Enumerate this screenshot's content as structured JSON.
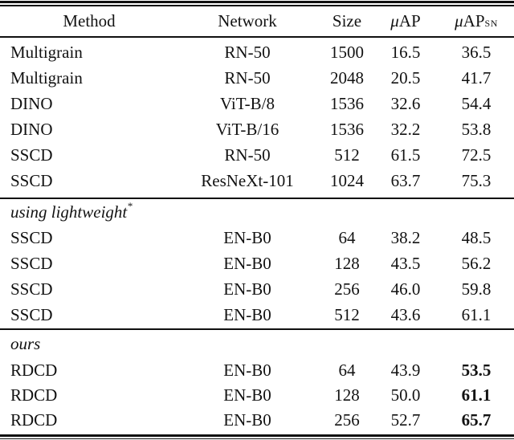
{
  "table": {
    "headers": [
      {
        "label": "Method"
      },
      {
        "label": "Network"
      },
      {
        "label": "Size"
      },
      {
        "label": "μAP",
        "mu": "μ",
        "rest": "AP"
      },
      {
        "label": "μAPSN",
        "mu": "μ",
        "rest": "AP",
        "sub": "SN"
      }
    ],
    "sections": [
      {
        "rows": [
          {
            "method": "Multigrain",
            "network": "RN-50",
            "size": "1500",
            "map": "16.5",
            "map_sn": "36.5",
            "bold_sn": false
          },
          {
            "method": "Multigrain",
            "network": "RN-50",
            "size": "2048",
            "map": "20.5",
            "map_sn": "41.7",
            "bold_sn": false
          },
          {
            "method": "DINO",
            "network": "ViT-B/8",
            "size": "1536",
            "map": "32.6",
            "map_sn": "54.4",
            "bold_sn": false
          },
          {
            "method": "DINO",
            "network": "ViT-B/16",
            "size": "1536",
            "map": "32.2",
            "map_sn": "53.8",
            "bold_sn": false
          },
          {
            "method": "SSCD",
            "network": "RN-50",
            "size": "512",
            "map": "61.5",
            "map_sn": "72.5",
            "bold_sn": false
          },
          {
            "method": "SSCD",
            "network": "ResNeXt-101",
            "size": "1024",
            "map": "63.7",
            "map_sn": "75.3",
            "bold_sn": false
          }
        ]
      },
      {
        "header_base": "using lightweight",
        "header_sup": "*",
        "rows": [
          {
            "method": "SSCD",
            "network": "EN-B0",
            "size": "64",
            "map": "38.2",
            "map_sn": "48.5",
            "bold_sn": false
          },
          {
            "method": "SSCD",
            "network": "EN-B0",
            "size": "128",
            "map": "43.5",
            "map_sn": "56.2",
            "bold_sn": false
          },
          {
            "method": "SSCD",
            "network": "EN-B0",
            "size": "256",
            "map": "46.0",
            "map_sn": "59.8",
            "bold_sn": false
          },
          {
            "method": "SSCD",
            "network": "EN-B0",
            "size": "512",
            "map": "43.6",
            "map_sn": "61.1",
            "bold_sn": false
          }
        ]
      },
      {
        "header_base": "ours",
        "header_sup": "",
        "rows": [
          {
            "method": "RDCD",
            "network": "EN-B0",
            "size": "64",
            "map": "43.9",
            "map_sn": "53.5",
            "bold_sn": true
          },
          {
            "method": "RDCD",
            "network": "EN-B0",
            "size": "128",
            "map": "50.0",
            "map_sn": "61.1",
            "bold_sn": true
          },
          {
            "method": "RDCD",
            "network": "EN-B0",
            "size": "256",
            "map": "52.7",
            "map_sn": "65.7",
            "bold_sn": true
          }
        ]
      }
    ]
  },
  "colors": {
    "text": "#121212",
    "rule": "#101010",
    "background": "#ffffff"
  }
}
